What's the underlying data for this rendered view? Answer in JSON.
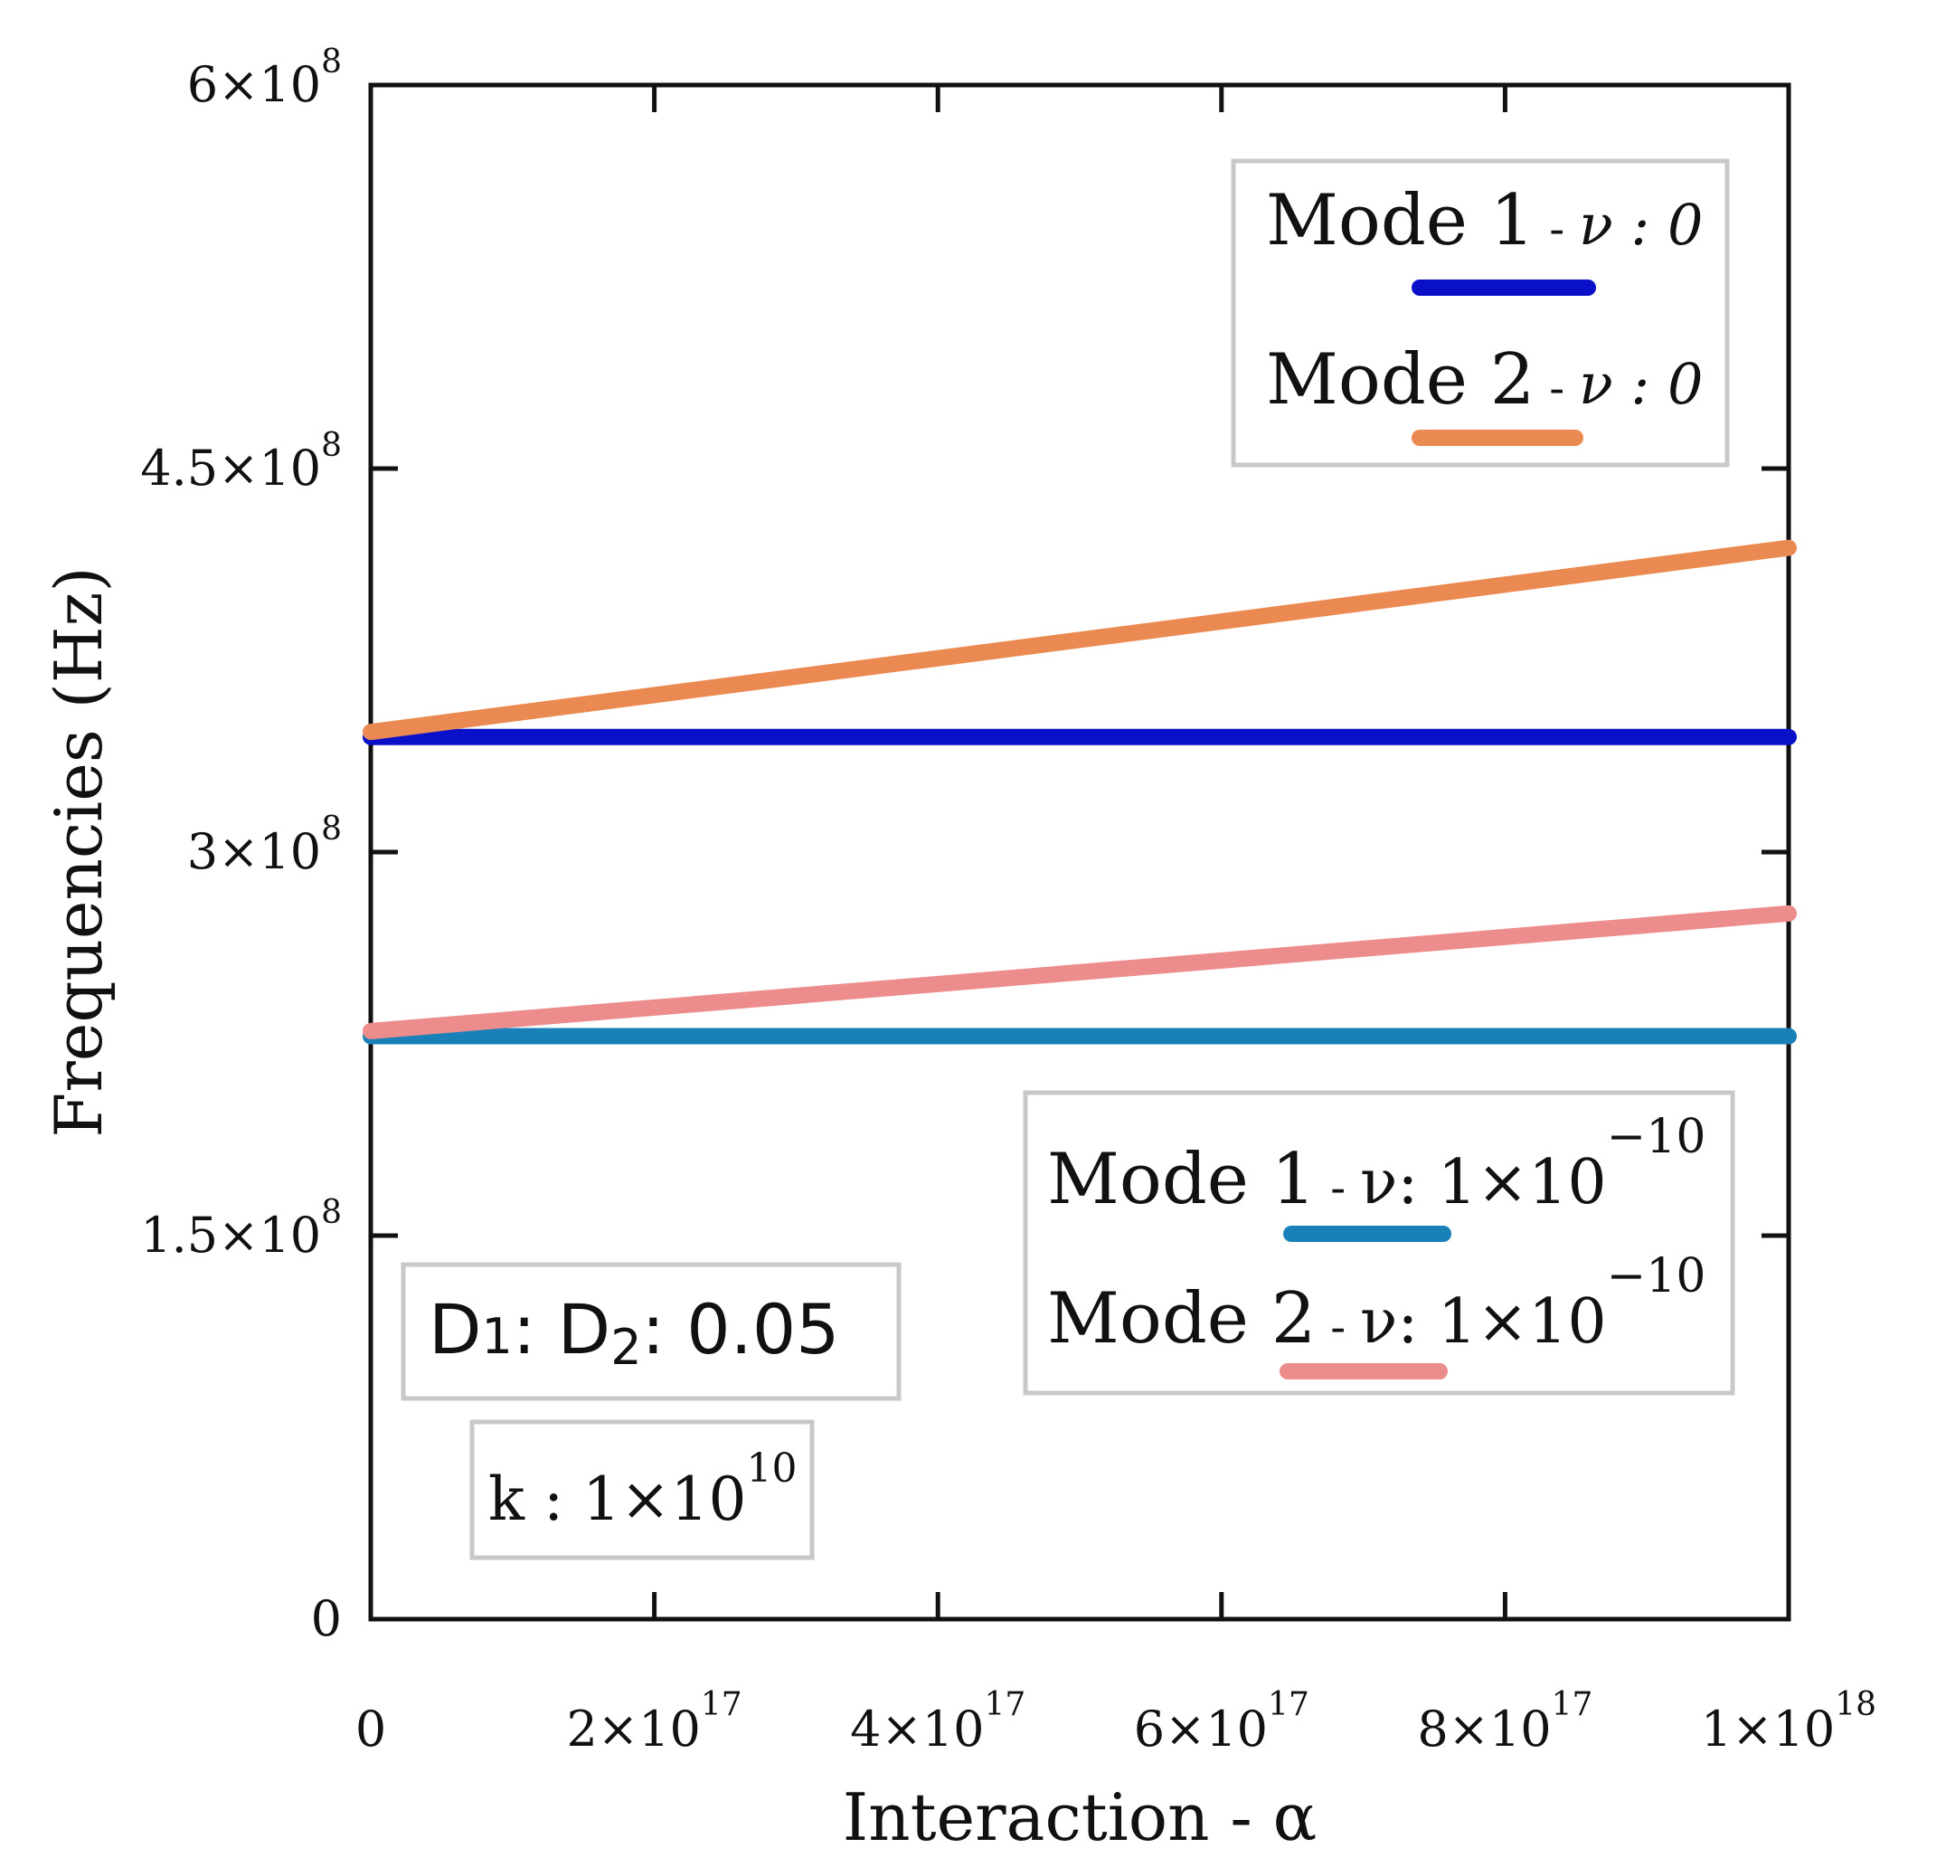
{
  "chart_data": {
    "type": "line",
    "xlabel": "Interaction - α",
    "ylabel": "Frequencies (Hz)",
    "xlim": [
      0,
      1e+18
    ],
    "ylim": [
      0,
      600000000.0
    ],
    "x_ticks": [
      {
        "value": 0,
        "base": "0",
        "exp": ""
      },
      {
        "value": 2e+17,
        "base": "2×10",
        "exp": "17"
      },
      {
        "value": 4e+17,
        "base": "4×10",
        "exp": "17"
      },
      {
        "value": 6e+17,
        "base": "6×10",
        "exp": "17"
      },
      {
        "value": 8e+17,
        "base": "8×10",
        "exp": "17"
      },
      {
        "value": 1e+18,
        "base": "1×10",
        "exp": "18"
      }
    ],
    "y_ticks": [
      {
        "value": 0,
        "base": "0",
        "exp": ""
      },
      {
        "value": 150000000.0,
        "base": "1.5×10",
        "exp": "8"
      },
      {
        "value": 300000000.0,
        "base": "3×10",
        "exp": "8"
      },
      {
        "value": 450000000.0,
        "base": "4.5×10",
        "exp": "8"
      },
      {
        "value": 600000000.0,
        "base": "6×10",
        "exp": "8"
      }
    ],
    "grid": false,
    "series": [
      {
        "name": "Mode 1 - ν : 0",
        "color": "#0a0fc8",
        "x": [
          0,
          1e+18
        ],
        "y": [
          345000000.0,
          345000000.0
        ]
      },
      {
        "name": "Mode 2 - ν : 0",
        "color": "#ea8a52",
        "x": [
          0,
          1e+18
        ],
        "y": [
          347000000.0,
          419000000.0
        ]
      },
      {
        "name": "Mode 1 - ν: 1×10^-10",
        "color": "#1a80b8",
        "x": [
          0,
          1e+18
        ],
        "y": [
          228000000.0,
          228000000.0
        ]
      },
      {
        "name": "Mode 2 - ν: 1×10^-10",
        "color": "#ec8c8c",
        "x": [
          0,
          1e+18
        ],
        "y": [
          230000000.0,
          276000000.0
        ]
      }
    ],
    "legends": [
      {
        "position": "top-right",
        "items": [
          {
            "label": "Mode 1",
            "sep": " - ",
            "param": "ν : 0",
            "color": "#0a0fc8"
          },
          {
            "label": "Mode 2",
            "sep": " - ",
            "param": "ν : 0",
            "color": "#ea8a52"
          }
        ]
      },
      {
        "position": "bottom-right",
        "items": [
          {
            "label": "Mode 1",
            "sep": " - ",
            "param": "ν: 1×10",
            "exp": "−10",
            "color": "#1a80b8"
          },
          {
            "label": "Mode 2",
            "sep": " - ",
            "param": "ν: 1×10",
            "exp": "−10",
            "color": "#ec8c8c"
          }
        ]
      }
    ],
    "annotations": {
      "ratio": {
        "d1": "D",
        "d1_sub": "1",
        "sep": ": ",
        "d2": "D",
        "d2_sub": "2",
        "value": ": 0.05"
      },
      "k": {
        "label": "k : 1×10",
        "exp": "10"
      }
    }
  }
}
